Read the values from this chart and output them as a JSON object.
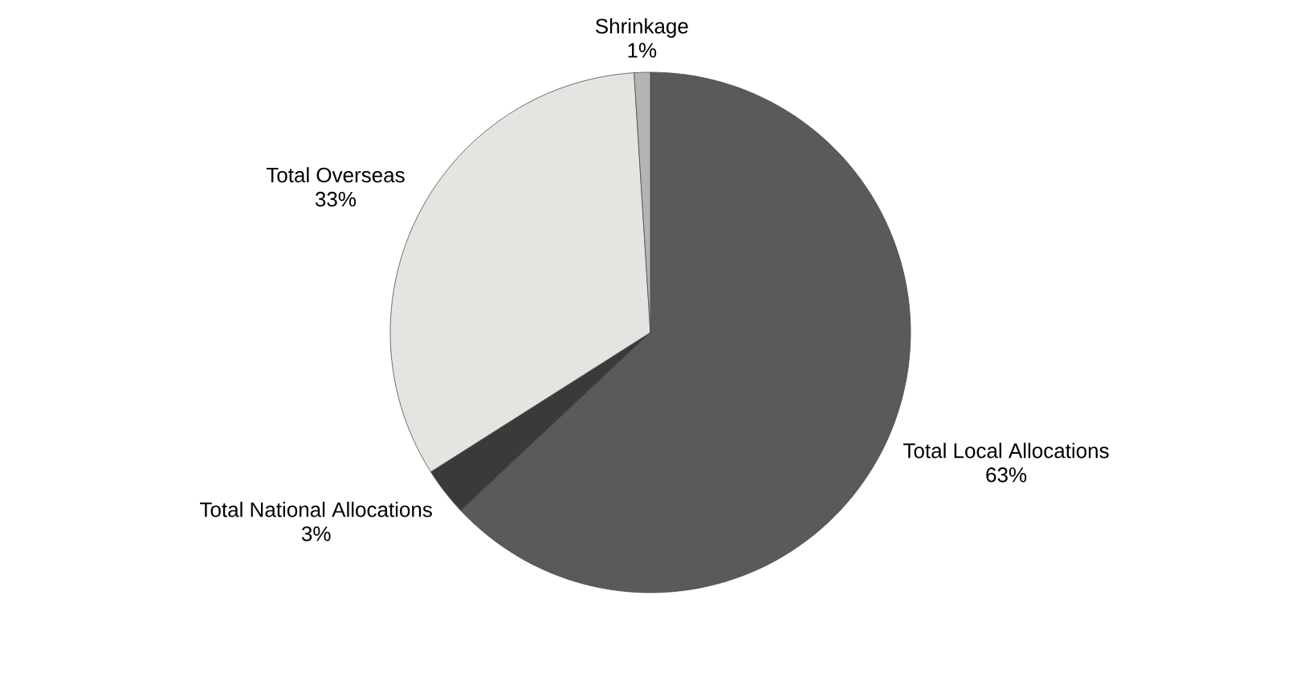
{
  "chart_data": {
    "type": "pie",
    "categories": [
      "Total Local Allocations",
      "Total National Allocations",
      "Total Overseas",
      "Shrinkage"
    ],
    "values": [
      63,
      3,
      33,
      1
    ],
    "value_labels": [
      "63%",
      "3%",
      "33%",
      "1%"
    ],
    "colors": [
      "#5a5a5a",
      "#3a3a3a",
      "#e4e4e0",
      "#b4b4b4"
    ]
  }
}
